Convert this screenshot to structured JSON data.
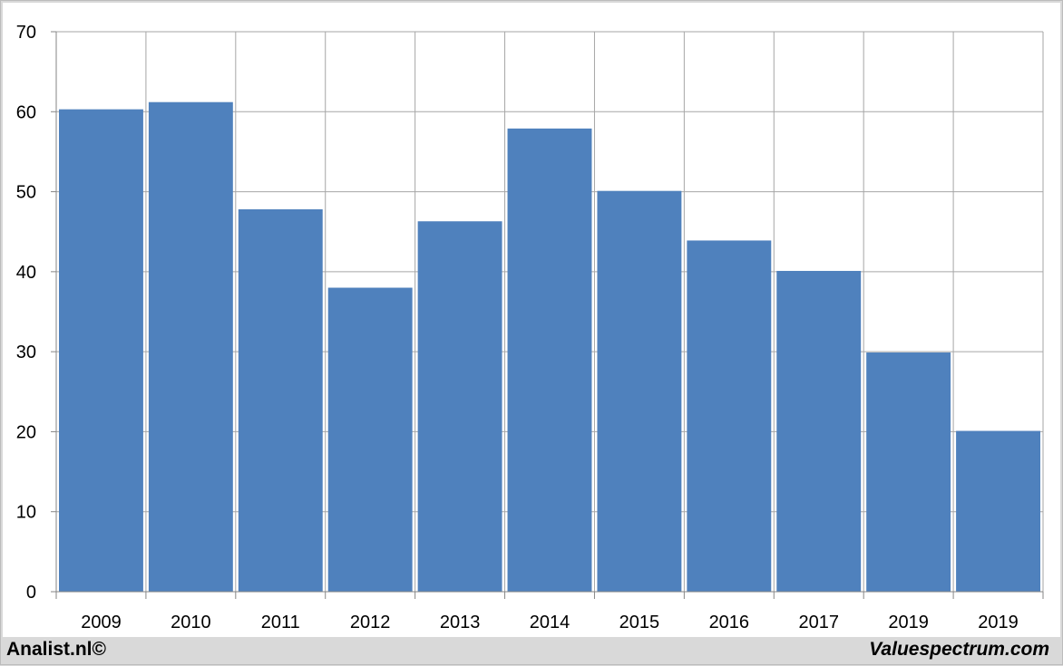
{
  "chart_data": {
    "type": "bar",
    "categories": [
      "2009",
      "2010",
      "2011",
      "2012",
      "2013",
      "2014",
      "2015",
      "2016",
      "2017",
      "2019",
      "2019"
    ],
    "values": [
      60.3,
      61.2,
      47.8,
      38.0,
      46.3,
      57.9,
      50.1,
      43.9,
      40.1,
      29.9,
      20.1
    ],
    "title": "",
    "xlabel": "",
    "ylabel": "",
    "ylim": [
      0,
      70
    ],
    "yticks": [
      0,
      10,
      20,
      30,
      40,
      50,
      60,
      70
    ],
    "grid": true,
    "bar_color": "#4f81bd",
    "gridline_color": "#a6a6a6"
  },
  "footer": {
    "left": "Analist.nl©",
    "right": "Valuespectrum.com"
  }
}
